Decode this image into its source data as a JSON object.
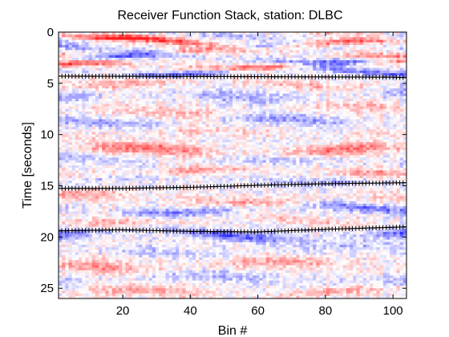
{
  "chart_data": {
    "type": "heatmap",
    "title": "Receiver Function Stack,  station: DLBC",
    "xlabel": "Bin #",
    "ylabel": "Time [seconds]",
    "xlim": [
      1,
      104
    ],
    "ylim": [
      0,
      26
    ],
    "y_reversed": true,
    "xticks": [
      20,
      40,
      60,
      80,
      100
    ],
    "yticks": [
      0,
      5,
      10,
      15,
      20,
      25
    ],
    "colormap": {
      "negative": "#1a1aff",
      "zero": "#ffffff",
      "positive": "#ff1a1a"
    },
    "phase_picks": [
      {
        "x": [
          1,
          60,
          100,
          104
        ],
        "t": [
          4.3,
          4.35,
          4.4,
          4.45
        ]
      },
      {
        "x": [
          1,
          20,
          40,
          60,
          80,
          104
        ],
        "t": [
          15.25,
          15.25,
          15.15,
          14.95,
          14.8,
          14.7
        ]
      },
      {
        "x": [
          1,
          20,
          40,
          60,
          80,
          100,
          104
        ],
        "t": [
          19.4,
          19.3,
          19.45,
          19.5,
          19.25,
          19.05,
          19.0
        ]
      }
    ],
    "bands": [
      {
        "t": 0.15,
        "w": 0.25,
        "a": 0.55
      },
      {
        "t": 0.55,
        "w": 0.28,
        "a": -0.35
      },
      {
        "t": 1.0,
        "w": 0.32,
        "a": 0.85
      },
      {
        "t": 1.55,
        "w": 0.3,
        "a": -0.4
      },
      {
        "t": 2.05,
        "w": 0.32,
        "a": 0.6
      },
      {
        "t": 2.6,
        "w": 0.32,
        "a": -0.85
      },
      {
        "t": 3.25,
        "w": 0.32,
        "a": 0.85
      },
      {
        "t": 3.85,
        "w": 0.28,
        "a": -0.75
      },
      {
        "t": 5.0,
        "w": 0.5,
        "a": 0.35
      },
      {
        "t": 6.2,
        "w": 0.6,
        "a": -0.35
      },
      {
        "t": 7.6,
        "w": 0.55,
        "a": 0.3
      },
      {
        "t": 8.7,
        "w": 0.45,
        "a": -0.45
      },
      {
        "t": 9.9,
        "w": 0.5,
        "a": 0.2
      },
      {
        "t": 11.6,
        "w": 0.55,
        "a": 0.65
      },
      {
        "t": 12.6,
        "w": 0.5,
        "a": -0.3
      },
      {
        "t": 13.6,
        "w": 0.45,
        "a": 0.45
      },
      {
        "t": 14.4,
        "w": 0.4,
        "a": -0.3
      },
      {
        "t": 16.3,
        "w": 0.5,
        "a": 0.45
      },
      {
        "t": 17.3,
        "w": 0.45,
        "a": -0.6
      },
      {
        "t": 18.3,
        "w": 0.45,
        "a": 0.3
      },
      {
        "t": 19.8,
        "w": 0.45,
        "a": -0.7
      },
      {
        "t": 21.3,
        "w": 0.55,
        "a": -0.25
      },
      {
        "t": 22.7,
        "w": 0.6,
        "a": 0.45
      },
      {
        "t": 24.1,
        "w": 0.55,
        "a": -0.3
      },
      {
        "t": 25.4,
        "w": 0.5,
        "a": 0.4
      }
    ]
  }
}
